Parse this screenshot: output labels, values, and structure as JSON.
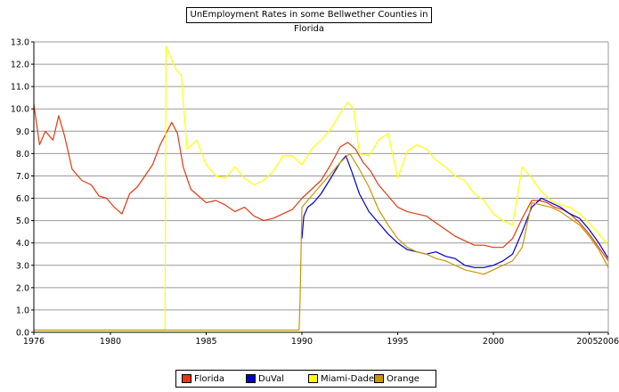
{
  "chart_data": {
    "type": "line",
    "title": "UnEmployment Rates in some Bellwether Counties in Florida",
    "xlabel": "",
    "ylabel": "",
    "xlim": [
      1976,
      2006
    ],
    "ylim": [
      0,
      13
    ],
    "yticks": [
      "0.0",
      "1.0",
      "2.0",
      "3.0",
      "4.0",
      "5.0",
      "6.0",
      "7.0",
      "8.0",
      "9.0",
      "10.0",
      "11.0",
      "12.0",
      "13.0"
    ],
    "xticks": [
      {
        "value": 1976,
        "label": "1976"
      },
      {
        "value": 1980,
        "label": "1980"
      },
      {
        "value": 1985,
        "label": "1985"
      },
      {
        "value": 1990,
        "label": "1990"
      },
      {
        "value": 1995,
        "label": "1995"
      },
      {
        "value": 2000,
        "label": "2000"
      },
      {
        "value": 2005,
        "label": "2005"
      },
      {
        "value": 2006,
        "label": "2006"
      }
    ],
    "grid": true,
    "legend_position": "bottom",
    "series": [
      {
        "name": "Florida",
        "color": "#e23a10",
        "x": [
          1976.0,
          1976.3,
          1976.6,
          1977.0,
          1977.3,
          1977.6,
          1978.0,
          1978.5,
          1979.0,
          1979.4,
          1979.8,
          1980.2,
          1980.6,
          1981.0,
          1981.4,
          1981.8,
          1982.2,
          1982.6,
          1982.9,
          1983.2,
          1983.5,
          1983.8,
          1984.2,
          1984.6,
          1985.0,
          1985.5,
          1986.0,
          1986.5,
          1987.0,
          1987.5,
          1988.0,
          1988.5,
          1989.0,
          1989.5,
          1990.0,
          1990.5,
          1991.0,
          1991.5,
          1992.0,
          1992.4,
          1992.8,
          1993.2,
          1993.6,
          1994.0,
          1994.5,
          1995.0,
          1995.5,
          1996.0,
          1996.5,
          1997.0,
          1997.5,
          1998.0,
          1998.5,
          1999.0,
          1999.5,
          2000.0,
          2000.5,
          2001.0,
          2001.5,
          2002.0,
          2002.4,
          2002.8,
          2003.2,
          2003.6,
          2004.0,
          2004.5,
          2005.0,
          2005.5,
          2006.0
        ],
        "y": [
          10.2,
          8.4,
          9.0,
          8.6,
          9.7,
          8.8,
          7.3,
          6.8,
          6.6,
          6.1,
          6.0,
          5.6,
          5.3,
          6.2,
          6.5,
          7.0,
          7.5,
          8.4,
          8.9,
          9.4,
          8.9,
          7.4,
          6.4,
          6.1,
          5.8,
          5.9,
          5.7,
          5.4,
          5.6,
          5.2,
          5.0,
          5.1,
          5.3,
          5.5,
          6.0,
          6.4,
          6.8,
          7.5,
          8.3,
          8.5,
          8.2,
          7.6,
          7.2,
          6.6,
          6.1,
          5.6,
          5.4,
          5.3,
          5.2,
          4.9,
          4.6,
          4.3,
          4.1,
          3.9,
          3.9,
          3.8,
          3.8,
          4.2,
          5.1,
          5.9,
          5.9,
          5.8,
          5.6,
          5.5,
          5.3,
          4.9,
          4.4,
          3.8,
          3.2
        ]
      },
      {
        "name": "DuVal",
        "color": "#0000c8",
        "x": [
          1990.0,
          1990.1,
          1990.3,
          1990.6,
          1991.0,
          1991.5,
          1992.0,
          1992.3,
          1992.6,
          1993.0,
          1993.5,
          1994.0,
          1994.5,
          1995.0,
          1995.5,
          1996.0,
          1996.5,
          1997.0,
          1997.5,
          1998.0,
          1998.5,
          1999.0,
          1999.5,
          2000.0,
          2000.5,
          2001.0,
          2001.5,
          2002.0,
          2002.5,
          2003.0,
          2003.5,
          2004.0,
          2004.5,
          2005.0,
          2005.5,
          2006.0
        ],
        "y": [
          4.2,
          5.2,
          5.6,
          5.8,
          6.2,
          6.9,
          7.6,
          7.9,
          7.2,
          6.2,
          5.4,
          4.9,
          4.4,
          4.0,
          3.7,
          3.6,
          3.5,
          3.6,
          3.4,
          3.3,
          3.0,
          2.9,
          2.9,
          3.0,
          3.2,
          3.5,
          4.5,
          5.6,
          6.0,
          5.8,
          5.6,
          5.3,
          5.1,
          4.6,
          4.0,
          3.3
        ]
      },
      {
        "name": "Miami-Dade",
        "color": "#ffff00",
        "x": [
          1976.0,
          1979.0,
          1982.0,
          1982.85,
          1982.9,
          1983.1,
          1983.4,
          1983.7,
          1984.0,
          1984.5,
          1985.0,
          1985.5,
          1986.0,
          1986.5,
          1987.0,
          1987.5,
          1988.0,
          1988.5,
          1989.0,
          1989.5,
          1990.0,
          1990.5,
          1991.0,
          1991.5,
          1992.0,
          1992.4,
          1992.7,
          1993.0,
          1993.5,
          1994.0,
          1994.5,
          1995.0,
          1995.5,
          1996.0,
          1996.5,
          1997.0,
          1997.5,
          1998.0,
          1998.5,
          1999.0,
          1999.5,
          2000.0,
          2000.5,
          2001.0,
          2001.5,
          2002.0,
          2002.5,
          2003.0,
          2003.5,
          2004.0,
          2004.5,
          2005.0,
          2005.5,
          2006.0
        ],
        "y": [
          0.1,
          0.1,
          0.1,
          0.1,
          12.8,
          12.4,
          11.8,
          11.5,
          8.2,
          8.6,
          7.5,
          7.0,
          6.9,
          7.4,
          6.9,
          6.6,
          6.8,
          7.2,
          7.9,
          7.9,
          7.5,
          8.2,
          8.6,
          9.1,
          9.8,
          10.3,
          10.0,
          8.0,
          7.9,
          8.6,
          8.9,
          6.9,
          8.1,
          8.4,
          8.2,
          7.7,
          7.4,
          7.0,
          6.8,
          6.2,
          5.9,
          5.3,
          5.0,
          4.8,
          7.4,
          6.9,
          6.3,
          5.9,
          5.7,
          5.6,
          5.3,
          4.9,
          4.4,
          3.9
        ]
      },
      {
        "name": "Orange",
        "color": "#c89600",
        "x": [
          1976.0,
          1980.0,
          1985.0,
          1989.85,
          1989.9,
          1990.0,
          1990.3,
          1990.6,
          1991.0,
          1991.5,
          1992.0,
          1992.5,
          1993.0,
          1993.5,
          1994.0,
          1994.5,
          1995.0,
          1995.5,
          1996.0,
          1996.5,
          1997.0,
          1997.5,
          1998.0,
          1998.5,
          1999.0,
          1999.5,
          2000.0,
          2000.5,
          2001.0,
          2001.5,
          2002.0,
          2002.5,
          2003.0,
          2003.5,
          2004.0,
          2004.5,
          2005.0,
          2005.5,
          2006.0
        ],
        "y": [
          0.1,
          0.1,
          0.1,
          0.1,
          1.4,
          5.6,
          5.9,
          6.2,
          6.6,
          7.1,
          7.6,
          8.0,
          7.3,
          6.5,
          5.5,
          4.8,
          4.2,
          3.8,
          3.6,
          3.5,
          3.3,
          3.2,
          3.0,
          2.8,
          2.7,
          2.6,
          2.8,
          3.0,
          3.2,
          3.8,
          5.8,
          5.7,
          5.6,
          5.4,
          5.1,
          4.8,
          4.3,
          3.7,
          2.9
        ]
      }
    ]
  }
}
